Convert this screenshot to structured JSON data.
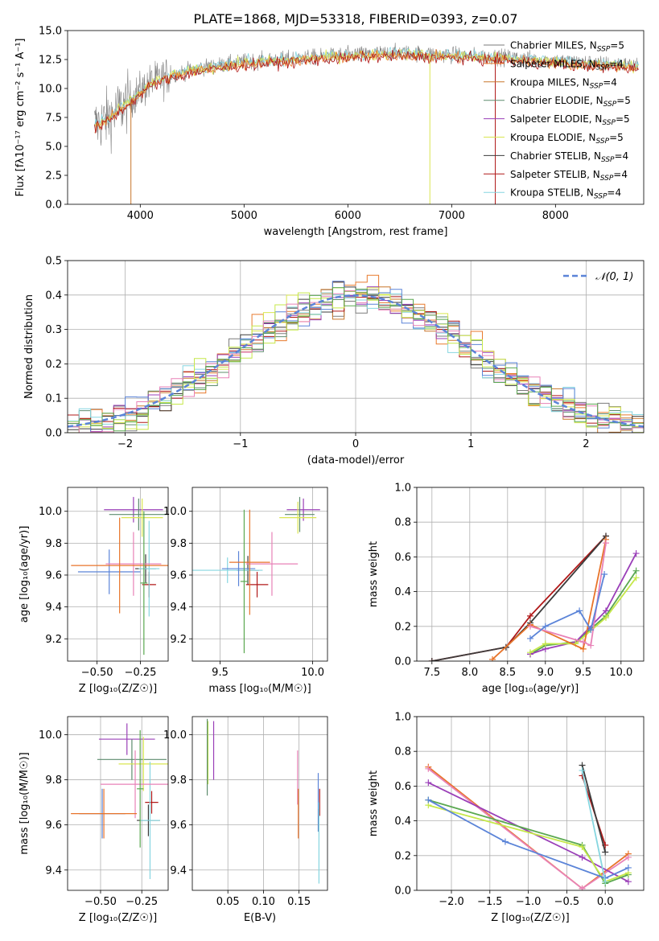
{
  "title": "PLATE=1868, MJD=53318, FIBERID=0393, z=0.07",
  "colors": {
    "chabrier_miles": "#7b7b7b",
    "salpeter_miles": "#e87a2d",
    "kroupa_miles": "#c8762a",
    "chabrier_elodie": "#5d8c6e",
    "salpeter_elodie": "#9a3fb8",
    "kroupa_elodie": "#d9e650",
    "chabrier_stelib": "#3b3b3b",
    "salpeter_stelib": "#b01818",
    "kroupa_stelib": "#86d6e0",
    "blue": "#5b84d8",
    "pink": "#e882b7",
    "orange": "#e8742a",
    "green": "#5aa850",
    "lime": "#c6e84a",
    "gaussian": "#5b84d8"
  },
  "chart_data": [
    {
      "id": "spectrum",
      "type": "line",
      "xlabel": "wavelength [Angstrom, rest frame]",
      "ylabel": "Flux [fλ10⁻¹⁷ erg cm⁻² s⁻¹ A⁻¹]",
      "xlim": [
        3300,
        8850
      ],
      "ylim": [
        0,
        15
      ],
      "xticks": [
        "4000",
        "5000",
        "6000",
        "7000",
        "8000"
      ],
      "yticks": [
        "0.0",
        "2.5",
        "5.0",
        "7.5",
        "10.0",
        "12.5",
        "15.0"
      ],
      "continuum": [
        [
          3560,
          6.8
        ],
        [
          3700,
          7.5
        ],
        [
          3900,
          9.0
        ],
        [
          4100,
          10.5
        ],
        [
          4300,
          11.2
        ],
        [
          4600,
          11.8
        ],
        [
          5000,
          12.3
        ],
        [
          5500,
          12.6
        ],
        [
          6000,
          12.9
        ],
        [
          6500,
          13.1
        ],
        [
          7000,
          12.9
        ],
        [
          7500,
          12.7
        ],
        [
          8000,
          12.4
        ],
        [
          8500,
          12.1
        ],
        [
          8800,
          12.0
        ]
      ],
      "legend": [
        {
          "label": "Chabrier MILES, N",
          "sub": "SSP",
          "tail": "=5",
          "color": "chabrier_miles"
        },
        {
          "label": "Salpeter MILES, N",
          "sub": "SSP",
          "tail": "=4",
          "color": "salpeter_miles"
        },
        {
          "label": "Kroupa MILES, N",
          "sub": "SSP",
          "tail": "=4",
          "color": "kroupa_miles"
        },
        {
          "label": "Chabrier ELODIE, N",
          "sub": "SSP",
          "tail": "=5",
          "color": "chabrier_elodie"
        },
        {
          "label": "Salpeter ELODIE, N",
          "sub": "SSP",
          "tail": "=5",
          "color": "salpeter_elodie"
        },
        {
          "label": "Kroupa ELODIE, N",
          "sub": "SSP",
          "tail": "=5",
          "color": "kroupa_elodie"
        },
        {
          "label": "Chabrier STELIB, N",
          "sub": "SSP",
          "tail": "=4",
          "color": "chabrier_stelib"
        },
        {
          "label": "Salpeter STELIB, N",
          "sub": "SSP",
          "tail": "=4",
          "color": "salpeter_stelib"
        },
        {
          "label": "Kroupa STELIB, N",
          "sub": "SSP",
          "tail": "=4",
          "color": "kroupa_stelib"
        }
      ]
    },
    {
      "id": "residuals",
      "type": "histogram",
      "xlabel": "(data-model)/error",
      "ylabel": "Normed distribution",
      "xlim": [
        -2.5,
        2.5
      ],
      "ylim": [
        0,
        0.5
      ],
      "xticks": [
        "−2",
        "−1",
        "0",
        "1",
        "2"
      ],
      "yticks": [
        "0.0",
        "0.1",
        "0.2",
        "0.3",
        "0.4",
        "0.5"
      ],
      "legend": "𝒩(0, 1)",
      "bins": 50,
      "model": "gaussian N(0,1)",
      "grid": true
    },
    {
      "id": "age_vs_Z",
      "type": "errorbar",
      "xlabel": "Z [log₁₀(Z/Z☉)]",
      "ylabel": "age  [log₁₀(age/yr)]",
      "xlim": [
        -0.67,
        -0.09
      ],
      "ylim": [
        9.06,
        10.15
      ],
      "xticks": [
        "−0.50",
        "−0.25"
      ],
      "yticks": [
        "9.2",
        "9.4",
        "9.6",
        "9.8",
        "10.0"
      ],
      "points": [
        {
          "x": -0.29,
          "y": 10.01,
          "xerr": 0.17,
          "yerr": 0.08,
          "color": "salpeter_elodie"
        },
        {
          "x": -0.26,
          "y": 9.98,
          "xerr": 0.17,
          "yerr": 0.1,
          "color": "chabrier_elodie"
        },
        {
          "x": -0.24,
          "y": 9.96,
          "xerr": 0.12,
          "yerr": 0.12,
          "color": "kroupa_elodie"
        },
        {
          "x": -0.22,
          "y": 9.64,
          "xerr": 0.06,
          "yerr": 0.09,
          "color": "chabrier_stelib"
        },
        {
          "x": -0.2,
          "y": 9.54,
          "xerr": 0.04,
          "yerr": 0.08,
          "color": "salpeter_stelib"
        },
        {
          "x": -0.2,
          "y": 9.64,
          "xerr": 0.06,
          "yerr": 0.3,
          "color": "kroupa_stelib"
        },
        {
          "x": -0.43,
          "y": 9.62,
          "xerr": 0.18,
          "yerr": 0.14,
          "color": "blue"
        },
        {
          "x": -0.29,
          "y": 9.67,
          "xerr": 0.16,
          "yerr": 0.2,
          "color": "pink"
        },
        {
          "x": -0.37,
          "y": 9.66,
          "xerr": 0.28,
          "yerr": 0.3,
          "color": "orange"
        },
        {
          "x": -0.23,
          "y": 9.55,
          "xerr": 0.02,
          "yerr": 0.45,
          "color": "green"
        }
      ]
    },
    {
      "id": "age_vs_mass",
      "type": "errorbar",
      "xlabel": "mass [log₁₀(M/M☉)]",
      "ylabel": "",
      "xlim": [
        9.35,
        10.08
      ],
      "ylim": [
        9.06,
        10.15
      ],
      "xticks": [
        "9.5",
        "10.0"
      ],
      "yticks": [
        "9.2",
        "9.4",
        "9.6",
        "9.8",
        "10.0"
      ],
      "points": [
        {
          "x": 9.95,
          "y": 10.01,
          "xerr": 0.09,
          "yerr": 0.07,
          "color": "salpeter_elodie"
        },
        {
          "x": 9.93,
          "y": 9.98,
          "xerr": 0.08,
          "yerr": 0.11,
          "color": "chabrier_elodie"
        },
        {
          "x": 9.92,
          "y": 9.96,
          "xerr": 0.1,
          "yerr": 0.1,
          "color": "kroupa_elodie"
        },
        {
          "x": 9.65,
          "y": 9.63,
          "xerr": 0.06,
          "yerr": 0.09,
          "color": "chabrier_stelib"
        },
        {
          "x": 9.7,
          "y": 9.54,
          "xerr": 0.06,
          "yerr": 0.08,
          "color": "salpeter_stelib"
        },
        {
          "x": 9.54,
          "y": 9.63,
          "xerr": 0.19,
          "yerr": 0.08,
          "color": "kroupa_stelib"
        },
        {
          "x": 9.6,
          "y": 9.64,
          "xerr": 0.09,
          "yerr": 0.11,
          "color": "blue"
        },
        {
          "x": 9.78,
          "y": 9.67,
          "xerr": 0.14,
          "yerr": 0.2,
          "color": "pink"
        },
        {
          "x": 9.66,
          "y": 9.68,
          "xerr": 0.11,
          "yerr": 0.33,
          "color": "orange"
        },
        {
          "x": 9.63,
          "y": 9.56,
          "xerr": 0.02,
          "yerr": 0.45,
          "color": "green"
        }
      ]
    },
    {
      "id": "weight_vs_age",
      "type": "line",
      "xlabel": "age  [log₁₀(age/yr)]",
      "ylabel": "mass weight",
      "xlim": [
        7.3,
        10.3
      ],
      "ylim": [
        0,
        1
      ],
      "xticks": [
        "7.5",
        "8.0",
        "8.5",
        "9.0",
        "9.5",
        "10.0"
      ],
      "yticks": [
        "0.0",
        "0.2",
        "0.4",
        "0.6",
        "0.8",
        "1.0"
      ],
      "grid": true,
      "series": [
        {
          "color": "salpeter_stelib",
          "x": [
            7.5,
            8.48,
            8.8,
            9.8
          ],
          "y": [
            0.0,
            0.08,
            0.26,
            0.72
          ]
        },
        {
          "color": "chabrier_stelib",
          "x": [
            7.5,
            8.48,
            8.8,
            9.8
          ],
          "y": [
            0.0,
            0.08,
            0.22,
            0.72
          ]
        },
        {
          "color": "green",
          "x": [
            8.8,
            9.0,
            9.4,
            9.8,
            10.2
          ],
          "y": [
            0.04,
            0.09,
            0.11,
            0.26,
            0.52
          ]
        },
        {
          "color": "salpeter_elodie",
          "x": [
            8.8,
            9.0,
            9.4,
            9.8,
            10.2
          ],
          "y": [
            0.04,
            0.07,
            0.11,
            0.29,
            0.62
          ]
        },
        {
          "color": "lime",
          "x": [
            8.8,
            9.0,
            9.4,
            9.8,
            10.2
          ],
          "y": [
            0.05,
            0.1,
            0.1,
            0.25,
            0.48
          ]
        },
        {
          "color": "orange",
          "x": [
            8.3,
            8.8,
            9.5,
            9.8
          ],
          "y": [
            0.01,
            0.21,
            0.07,
            0.7
          ]
        },
        {
          "color": "pink",
          "x": [
            8.8,
            9.5,
            9.6,
            9.8
          ],
          "y": [
            0.2,
            0.11,
            0.09,
            0.68
          ]
        },
        {
          "color": "blue",
          "x": [
            8.8,
            9.0,
            9.45,
            9.6,
            9.78
          ],
          "y": [
            0.13,
            0.2,
            0.29,
            0.18,
            0.5
          ]
        }
      ]
    },
    {
      "id": "mass_vs_Z",
      "type": "errorbar",
      "xlabel": "Z [log₁₀(Z/Z☉)]",
      "ylabel": "mass [log₁₀(M/M☉)]",
      "xlim": [
        -0.7,
        -0.09
      ],
      "ylim": [
        9.31,
        10.08
      ],
      "xticks": [
        "−0.50",
        "−0.25"
      ],
      "yticks": [
        "9.4",
        "9.6",
        "9.8",
        "10.0"
      ],
      "points": [
        {
          "x": -0.34,
          "y": 9.98,
          "xerr": 0.17,
          "yerr": 0.07,
          "color": "salpeter_elodie"
        },
        {
          "x": -0.31,
          "y": 9.89,
          "xerr": 0.21,
          "yerr": 0.09,
          "color": "chabrier_elodie"
        },
        {
          "x": -0.24,
          "y": 9.87,
          "xerr": 0.15,
          "yerr": 0.12,
          "color": "kroupa_elodie"
        },
        {
          "x": -0.19,
          "y": 9.7,
          "xerr": 0.04,
          "yerr": 0.05,
          "color": "salpeter_stelib"
        },
        {
          "x": -0.21,
          "y": 9.62,
          "xerr": 0.07,
          "yerr": 0.07,
          "color": "chabrier_stelib"
        },
        {
          "x": -0.2,
          "y": 9.62,
          "xerr": 0.06,
          "yerr": 0.26,
          "color": "kroupa_stelib"
        },
        {
          "x": -0.49,
          "y": 9.65,
          "xerr": 0.14,
          "yerr": 0.11,
          "color": "blue"
        },
        {
          "x": -0.29,
          "y": 9.78,
          "xerr": 0.21,
          "yerr": 0.15,
          "color": "pink"
        },
        {
          "x": -0.48,
          "y": 9.65,
          "xerr": 0.2,
          "yerr": 0.11,
          "color": "orange"
        },
        {
          "x": -0.26,
          "y": 9.76,
          "xerr": 0.02,
          "yerr": 0.26,
          "color": "green"
        }
      ]
    },
    {
      "id": "mass_vs_ebv",
      "type": "errorbar",
      "xlabel": "E(B-V)",
      "ylabel": "",
      "xlim": [
        0.0,
        0.19
      ],
      "ylim": [
        9.31,
        10.08
      ],
      "xticks": [
        "0.05",
        "0.10",
        "0.15"
      ],
      "yticks": [
        "9.4",
        "9.6",
        "9.8",
        "10.0"
      ],
      "points": [
        {
          "x": 0.022,
          "y": 9.92,
          "xerr": 0,
          "yerr": 0.14,
          "color": "lime"
        },
        {
          "x": 0.021,
          "y": 9.9,
          "xerr": 0,
          "yerr": 0.17,
          "color": "chabrier_elodie"
        },
        {
          "x": 0.03,
          "y": 9.93,
          "xerr": 0,
          "yerr": 0.13,
          "color": "salpeter_elodie"
        },
        {
          "x": 0.148,
          "y": 9.81,
          "xerr": 0,
          "yerr": 0.12,
          "color": "pink"
        },
        {
          "x": 0.149,
          "y": 9.65,
          "xerr": 0,
          "yerr": 0.11,
          "color": "orange"
        },
        {
          "x": 0.177,
          "y": 9.7,
          "xerr": 0,
          "yerr": 0.13,
          "color": "blue"
        },
        {
          "x": 0.179,
          "y": 9.7,
          "xerr": 0,
          "yerr": 0.06,
          "color": "salpeter_stelib"
        },
        {
          "x": 0.178,
          "y": 9.62,
          "xerr": 0,
          "yerr": 0.05,
          "color": "chabrier_stelib"
        },
        {
          "x": 0.178,
          "y": 9.52,
          "xerr": 0,
          "yerr": 0.18,
          "color": "kroupa_stelib"
        }
      ]
    },
    {
      "id": "weight_vs_Z",
      "type": "line",
      "xlabel": "Z [log₁₀(Z/Z☉)]",
      "ylabel": "mass weight",
      "xlim": [
        -2.45,
        0.5
      ],
      "ylim": [
        0,
        1
      ],
      "xticks": [
        "−2.0",
        "−1.5",
        "−1.0",
        "−0.5",
        "0.0"
      ],
      "yticks": [
        "0.0",
        "0.2",
        "0.4",
        "0.6",
        "0.8",
        "1.0"
      ],
      "grid": true,
      "series": [
        {
          "color": "orange",
          "x": [
            -2.3,
            -0.3,
            0.3
          ],
          "y": [
            0.71,
            0.01,
            0.21
          ]
        },
        {
          "color": "pink",
          "x": [
            -2.3,
            -0.3,
            0.3
          ],
          "y": [
            0.7,
            0.01,
            0.19
          ]
        },
        {
          "color": "salpeter_elodie",
          "x": [
            -2.3,
            -0.3,
            0.3
          ],
          "y": [
            0.62,
            0.19,
            0.05
          ]
        },
        {
          "color": "green",
          "x": [
            -2.3,
            -0.3,
            0.0,
            0.3
          ],
          "y": [
            0.52,
            0.26,
            0.04,
            0.09
          ]
        },
        {
          "color": "lime",
          "x": [
            -2.3,
            -0.3,
            0.0,
            0.3
          ],
          "y": [
            0.49,
            0.25,
            0.05,
            0.1
          ]
        },
        {
          "color": "blue",
          "x": [
            -2.3,
            -1.3,
            0.0,
            0.3
          ],
          "y": [
            0.52,
            0.28,
            0.07,
            0.13
          ]
        },
        {
          "color": "salpeter_stelib",
          "x": [
            -0.3,
            0.0
          ],
          "y": [
            0.66,
            0.26
          ]
        },
        {
          "color": "chabrier_stelib",
          "x": [
            -0.3,
            0.0
          ],
          "y": [
            0.72,
            0.22
          ]
        },
        {
          "color": "kroupa_stelib",
          "x": [
            -0.3,
            0.0
          ],
          "y": [
            0.69,
            0.05
          ]
        }
      ]
    }
  ]
}
